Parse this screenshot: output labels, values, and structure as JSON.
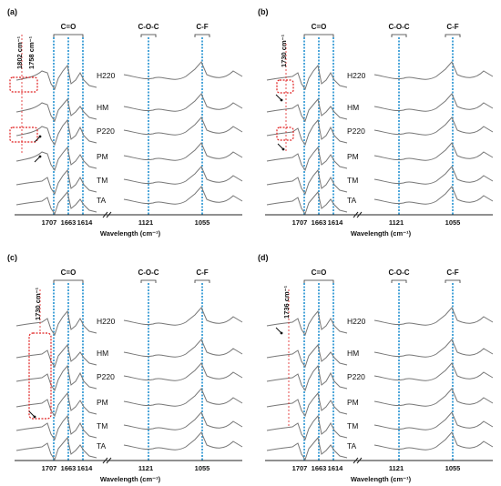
{
  "chart_data": [
    {
      "panel": "(a)",
      "type": "line",
      "xlabel": "Wavelength (cm⁻¹)",
      "x_ticks": [
        "1707",
        "1663",
        "1614",
        "1121",
        "1055"
      ],
      "band_labels": [
        "C=O",
        "C-O-C",
        "C-F"
      ],
      "series": [
        {
          "name": "H220"
        },
        {
          "name": "HM"
        },
        {
          "name": "P220"
        },
        {
          "name": "PM"
        },
        {
          "name": "TM"
        },
        {
          "name": "TA"
        }
      ],
      "annotations": [
        "1802 cm⁻¹",
        "1758 cm⁻¹"
      ]
    },
    {
      "panel": "(b)",
      "type": "line",
      "xlabel": "Wavelength (cm⁻¹)",
      "x_ticks": [
        "1707",
        "1663",
        "1614",
        "1121",
        "1055"
      ],
      "band_labels": [
        "C=O",
        "C-O-C",
        "C-F"
      ],
      "series": [
        {
          "name": "H220"
        },
        {
          "name": "HM"
        },
        {
          "name": "P220"
        },
        {
          "name": "PM"
        },
        {
          "name": "TM"
        },
        {
          "name": "TA"
        }
      ],
      "annotations": [
        "1730 cm⁻¹"
      ]
    },
    {
      "panel": "(c)",
      "type": "line",
      "xlabel": "Wavelength (cm⁻¹)",
      "x_ticks": [
        "1707",
        "1663",
        "1614",
        "1121",
        "1055"
      ],
      "band_labels": [
        "C=O",
        "C-O-C",
        "C-F"
      ],
      "series": [
        {
          "name": "H220"
        },
        {
          "name": "HM"
        },
        {
          "name": "P220"
        },
        {
          "name": "PM"
        },
        {
          "name": "TM"
        },
        {
          "name": "TA"
        }
      ],
      "annotations": [
        "1730 cm⁻¹"
      ]
    },
    {
      "panel": "(d)",
      "type": "line",
      "xlabel": "Wavelength (cm⁻¹)",
      "x_ticks": [
        "1707",
        "1663",
        "1614",
        "1121",
        "1055"
      ],
      "band_labels": [
        "C=O",
        "C-O-C",
        "C-F"
      ],
      "series": [
        {
          "name": "H220"
        },
        {
          "name": "HM"
        },
        {
          "name": "P220"
        },
        {
          "name": "PM"
        },
        {
          "name": "TM"
        },
        {
          "name": "TA"
        }
      ],
      "annotations": [
        "1736 cm⁻¹"
      ]
    }
  ],
  "colors": {
    "guide": "#1f8fd0",
    "highlight": "#e02020",
    "trace": "#777777"
  }
}
